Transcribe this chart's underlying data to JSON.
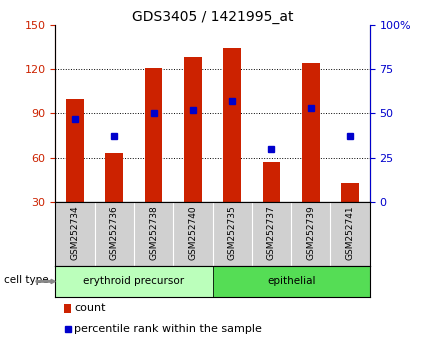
{
  "title": "GDS3405 / 1421995_at",
  "samples": [
    "GSM252734",
    "GSM252736",
    "GSM252738",
    "GSM252740",
    "GSM252735",
    "GSM252737",
    "GSM252739",
    "GSM252741"
  ],
  "bar_values": [
    100,
    63,
    121,
    128,
    134,
    57,
    124,
    43
  ],
  "percentile_values": [
    47,
    37,
    50,
    52,
    57,
    30,
    53,
    37
  ],
  "bar_color": "#cc2200",
  "marker_color": "#0000cc",
  "bar_bottom": 30,
  "ylim_left": [
    30,
    150
  ],
  "ylim_right": [
    0,
    100
  ],
  "yticks_left": [
    30,
    60,
    90,
    120,
    150
  ],
  "yticks_right": [
    0,
    25,
    50,
    75,
    100
  ],
  "yticklabels_right": [
    "0",
    "25",
    "50",
    "75",
    "100%"
  ],
  "group1_label": "erythroid precursor",
  "group2_label": "epithelial",
  "group1_indices": [
    0,
    1,
    2,
    3
  ],
  "group2_indices": [
    4,
    5,
    6,
    7
  ],
  "group1_color": "#bbffbb",
  "group2_color": "#55dd55",
  "cell_type_label": "cell type",
  "legend_count_label": "count",
  "legend_percentile_label": "percentile rank within the sample",
  "bg_color": "#ffffff",
  "bar_width": 0.45,
  "grid_color": "#000000",
  "axis_label_color_left": "#cc2200",
  "axis_label_color_right": "#0000cc",
  "xlabel_area_color": "#d0d0d0",
  "title_fontsize": 10,
  "tick_fontsize": 8,
  "legend_fontsize": 8
}
